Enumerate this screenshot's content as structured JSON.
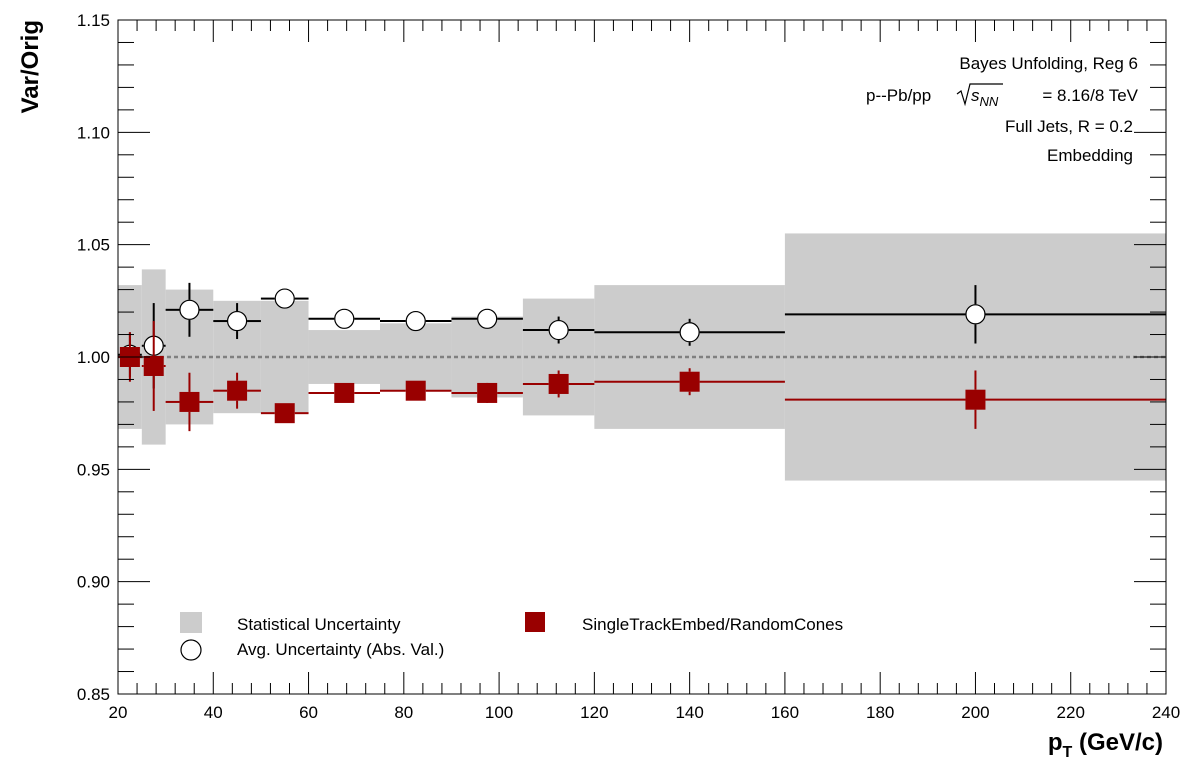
{
  "chart_data": {
    "type": "scatter",
    "xlabel_main": "p",
    "xlabel_sub": "T",
    "xlabel_unit": " (GeV/c)",
    "ylabel": "Var/Orig",
    "xlim": [
      20,
      240
    ],
    "ylim": [
      0.85,
      1.15
    ],
    "x_ticks": [
      20,
      40,
      60,
      80,
      100,
      120,
      140,
      160,
      180,
      200,
      220,
      240
    ],
    "y_ticks": [
      0.85,
      0.9,
      0.95,
      1.0,
      1.05,
      1.1,
      1.15
    ],
    "y_tick_labels": [
      "0.85",
      "0.90",
      "0.95",
      "1.00",
      "1.05",
      "1.10",
      "1.15"
    ],
    "reference_line": 1.0,
    "info_lines": {
      "line1": "Bayes Unfolding, Reg 6",
      "line2_prefix": "p--Pb/pp",
      "line2_s": "s",
      "line2_sub": "NN",
      "line2_suffix": "= 8.16/8 TeV",
      "line3": "Full Jets, R = 0.2",
      "line4": "Embedding"
    },
    "bins": [
      {
        "lo": 20,
        "hi": 25,
        "stat_err": 0.032
      },
      {
        "lo": 25,
        "hi": 30,
        "stat_err": 0.039
      },
      {
        "lo": 30,
        "hi": 40,
        "stat_err": 0.03
      },
      {
        "lo": 40,
        "hi": 50,
        "stat_err": 0.025
      },
      {
        "lo": 50,
        "hi": 60,
        "stat_err": 0.025
      },
      {
        "lo": 60,
        "hi": 75,
        "stat_err": 0.012
      },
      {
        "lo": 75,
        "hi": 90,
        "stat_err": 0.015
      },
      {
        "lo": 90,
        "hi": 105,
        "stat_err": 0.018
      },
      {
        "lo": 105,
        "hi": 120,
        "stat_err": 0.026
      },
      {
        "lo": 120,
        "hi": 160,
        "stat_err": 0.032
      },
      {
        "lo": 160,
        "hi": 240,
        "stat_err": 0.055
      }
    ],
    "series": [
      {
        "name": "Avg. Uncertainty (Abs. Val.)",
        "marker": "open-circle",
        "color": "#000000",
        "points": [
          {
            "x": 22.5,
            "xlo": 20,
            "xhi": 25,
            "y": 1.001,
            "yerr": 0.01
          },
          {
            "x": 27.5,
            "xlo": 25,
            "xhi": 30,
            "y": 1.005,
            "yerr": 0.019
          },
          {
            "x": 35,
            "xlo": 30,
            "xhi": 40,
            "y": 1.021,
            "yerr": 0.012
          },
          {
            "x": 45,
            "xlo": 40,
            "xhi": 50,
            "y": 1.016,
            "yerr": 0.008
          },
          {
            "x": 55,
            "xlo": 50,
            "xhi": 60,
            "y": 1.026,
            "yerr": 0.0
          },
          {
            "x": 67.5,
            "xlo": 60,
            "xhi": 75,
            "y": 1.017,
            "yerr": 0.0
          },
          {
            "x": 82.5,
            "xlo": 75,
            "xhi": 90,
            "y": 1.016,
            "yerr": 0.0
          },
          {
            "x": 97.5,
            "xlo": 90,
            "xhi": 105,
            "y": 1.017,
            "yerr": 0.0
          },
          {
            "x": 112.5,
            "xlo": 105,
            "xhi": 120,
            "y": 1.012,
            "yerr": 0.006
          },
          {
            "x": 140,
            "xlo": 120,
            "xhi": 160,
            "y": 1.011,
            "yerr": 0.006
          },
          {
            "x": 200,
            "xlo": 160,
            "xhi": 240,
            "y": 1.019,
            "yerr": 0.013
          }
        ]
      },
      {
        "name": "SingleTrackEmbed/RandomCones",
        "marker": "filled-square",
        "color": "#990000",
        "points": [
          {
            "x": 22.5,
            "xlo": 20,
            "xhi": 25,
            "y": 1.0,
            "yerr": 0.011
          },
          {
            "x": 27.5,
            "xlo": 25,
            "xhi": 30,
            "y": 0.996,
            "yerr": 0.02
          },
          {
            "x": 35,
            "xlo": 30,
            "xhi": 40,
            "y": 0.98,
            "yerr": 0.013
          },
          {
            "x": 45,
            "xlo": 40,
            "xhi": 50,
            "y": 0.985,
            "yerr": 0.008
          },
          {
            "x": 55,
            "xlo": 50,
            "xhi": 60,
            "y": 0.975,
            "yerr": 0.0
          },
          {
            "x": 67.5,
            "xlo": 60,
            "xhi": 75,
            "y": 0.984,
            "yerr": 0.0
          },
          {
            "x": 82.5,
            "xlo": 75,
            "xhi": 90,
            "y": 0.985,
            "yerr": 0.0
          },
          {
            "x": 97.5,
            "xlo": 90,
            "xhi": 105,
            "y": 0.984,
            "yerr": 0.003
          },
          {
            "x": 112.5,
            "xlo": 105,
            "xhi": 120,
            "y": 0.988,
            "yerr": 0.006
          },
          {
            "x": 140,
            "xlo": 120,
            "xhi": 160,
            "y": 0.989,
            "yerr": 0.006
          },
          {
            "x": 200,
            "xlo": 160,
            "xhi": 240,
            "y": 0.981,
            "yerr": 0.013
          }
        ]
      }
    ],
    "legend": {
      "placement": "bottom-left",
      "stat_label": "Statistical Uncertainty",
      "avg_label": "Avg. Uncertainty (Abs. Val.)",
      "var_label": "SingleTrackEmbed/RandomCones"
    },
    "colors": {
      "band": "#cccccc",
      "avg": "#000000",
      "var": "#990000",
      "ref_line": "#808080"
    }
  }
}
